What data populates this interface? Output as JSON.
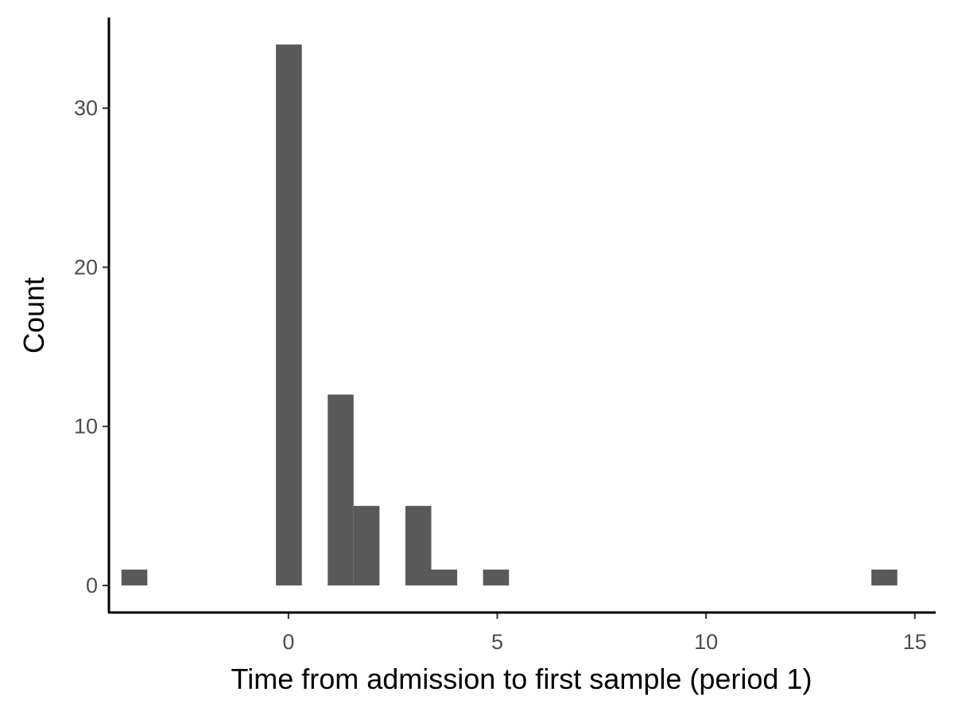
{
  "chart_data": {
    "type": "bar",
    "subtype": "histogram",
    "title": "",
    "xlabel": "Time from admission to first sample (period 1)",
    "ylabel": "Count",
    "xlim": [
      -4.3,
      15.5
    ],
    "ylim": [
      -1.7,
      35.7
    ],
    "bin_width": 0.62,
    "xticks": [
      0,
      5,
      10,
      15
    ],
    "yticks": [
      0,
      10,
      20,
      30
    ],
    "bins": [
      {
        "x0": -4.0,
        "x1": -3.38,
        "count": 1
      },
      {
        "x0": -0.3,
        "x1": 0.32,
        "count": 34
      },
      {
        "x0": 0.94,
        "x1": 1.56,
        "count": 12
      },
      {
        "x0": 1.56,
        "x1": 2.18,
        "count": 5
      },
      {
        "x0": 2.8,
        "x1": 3.42,
        "count": 5
      },
      {
        "x0": 3.42,
        "x1": 4.04,
        "count": 1
      },
      {
        "x0": 4.66,
        "x1": 5.28,
        "count": 1
      },
      {
        "x0": 13.96,
        "x1": 14.58,
        "count": 1
      }
    ],
    "bar_color": "#595959",
    "grid": false,
    "legend": "none"
  }
}
